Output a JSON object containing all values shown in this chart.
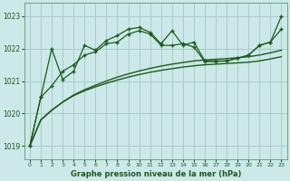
{
  "title": "Graphe pression niveau de la mer (hPa)",
  "background_color": "#cce8e8",
  "grid_color": "#aacccc",
  "line_color": "#1a5c1a",
  "ylim": [
    1018.6,
    1023.4
  ],
  "yticks": [
    1019,
    1020,
    1021,
    1022,
    1023
  ],
  "xlim": [
    -0.5,
    23.5
  ],
  "x_ticks": [
    0,
    1,
    2,
    3,
    4,
    5,
    6,
    7,
    8,
    9,
    10,
    11,
    12,
    13,
    14,
    15,
    16,
    17,
    18,
    19,
    20,
    21,
    22,
    23
  ],
  "lineA": [
    1019.0,
    1019.8,
    1020.1,
    1020.35,
    1020.55,
    1020.7,
    1020.82,
    1020.93,
    1021.03,
    1021.12,
    1021.2,
    1021.27,
    1021.33,
    1021.38,
    1021.43,
    1021.47,
    1021.5,
    1021.52,
    1021.54,
    1021.56,
    1021.58,
    1021.62,
    1021.68,
    1021.75
  ],
  "lineB": [
    1019.0,
    1019.8,
    1020.1,
    1020.35,
    1020.57,
    1020.73,
    1020.87,
    1021.0,
    1021.12,
    1021.22,
    1021.31,
    1021.39,
    1021.46,
    1021.52,
    1021.57,
    1021.62,
    1021.65,
    1021.67,
    1021.69,
    1021.72,
    1021.75,
    1021.8,
    1021.87,
    1021.95
  ],
  "lineC": [
    1019.0,
    1020.5,
    1020.85,
    1021.3,
    1021.5,
    1021.8,
    1021.9,
    1022.15,
    1022.2,
    1022.45,
    1022.55,
    1022.45,
    1022.1,
    1022.1,
    1022.15,
    1022.05,
    1021.6,
    1021.6,
    1021.62,
    1021.7,
    1021.8,
    1022.1,
    1022.2,
    1022.6
  ],
  "lineD": [
    1019.0,
    1020.5,
    1022.0,
    1021.05,
    1021.3,
    1022.1,
    1021.95,
    1022.25,
    1022.4,
    1022.6,
    1022.65,
    1022.5,
    1022.15,
    1022.55,
    1022.1,
    1022.2,
    1021.62,
    1021.62,
    1021.62,
    1021.7,
    1021.8,
    1022.1,
    1022.2,
    1023.0
  ]
}
